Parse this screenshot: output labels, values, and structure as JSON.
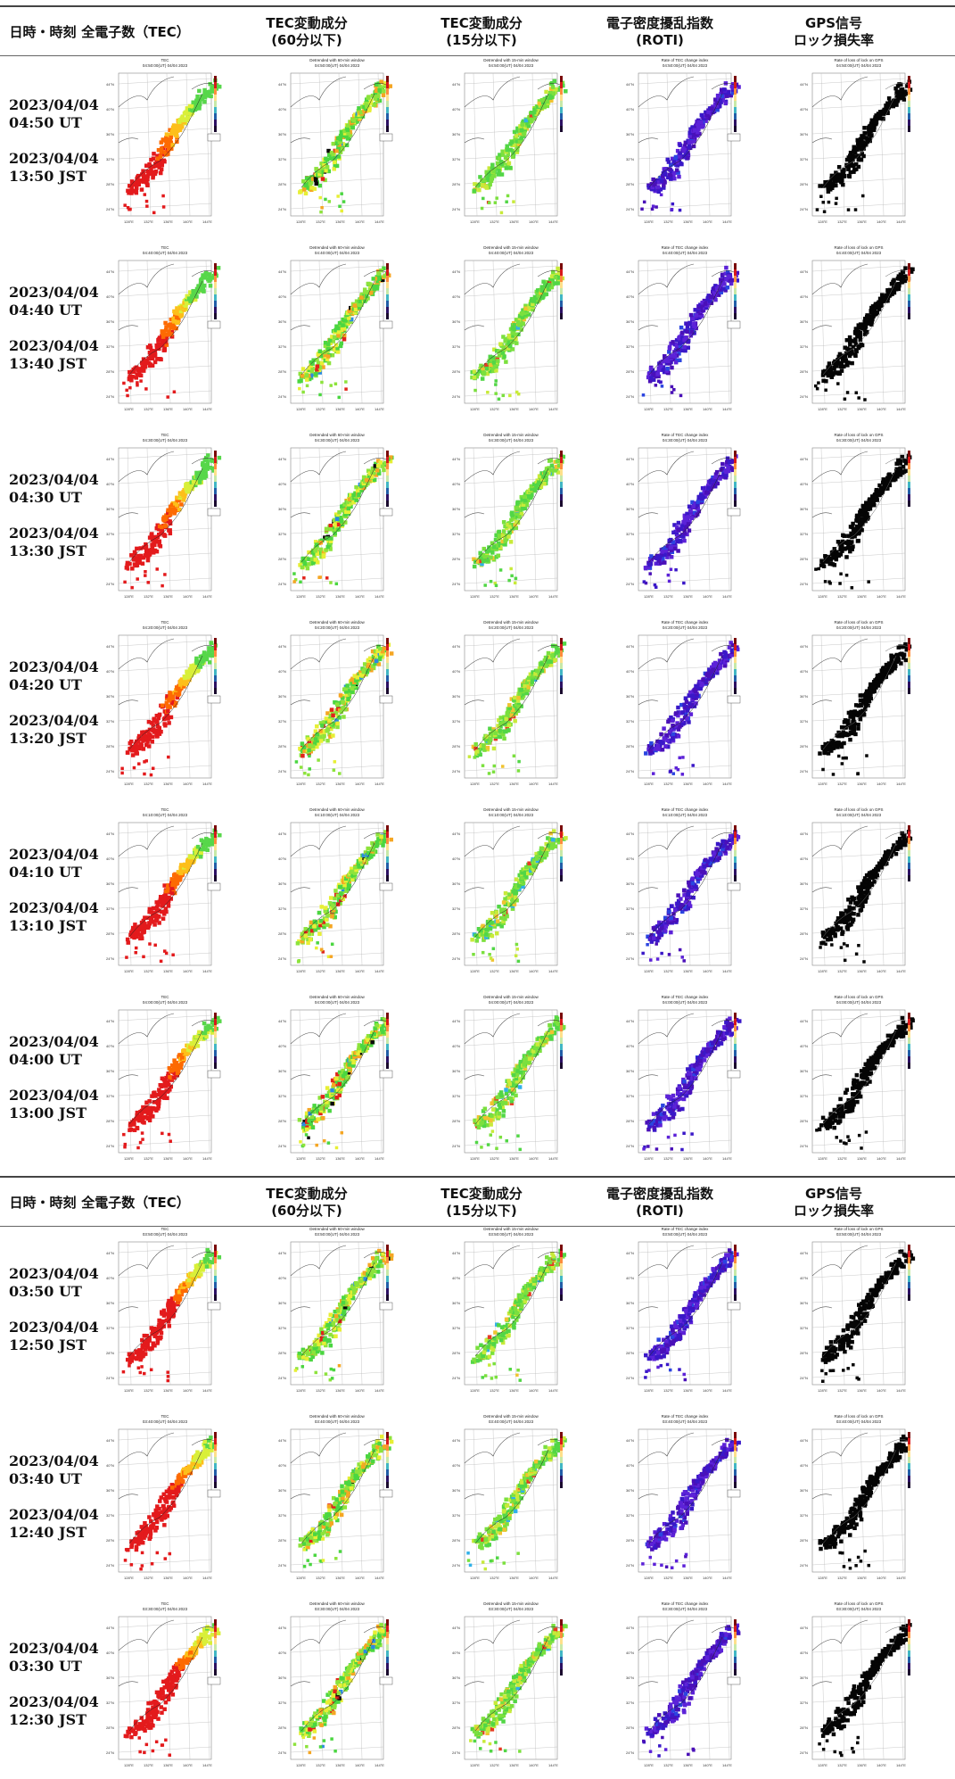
{
  "headers": [
    {
      "label": "日時・時刻"
    },
    {
      "label": "全電子数（TEC）"
    },
    {
      "label": "TEC変動成分\n(60分以下)"
    },
    {
      "label": "TEC変動成分\n(15分以下)"
    },
    {
      "label": "電子密度擾乱指数\n(ROTI)"
    },
    {
      "label": "GPS信号\nロック損失率"
    }
  ],
  "rows": [
    {
      "ut": "2023/04/04\n04:50 UT",
      "jst": "2023/04/04\n13:50 JST",
      "map_time": "04:50:00(UT) 04/04 2023"
    },
    {
      "ut": "2023/04/04\n04:40 UT",
      "jst": "2023/04/04\n13:40 JST",
      "map_time": "04:40:00(UT) 04/04 2023"
    },
    {
      "ut": "2023/04/04\n04:30 UT",
      "jst": "2023/04/04\n13:30 JST",
      "map_time": "04:30:00(UT) 04/04 2023"
    },
    {
      "ut": "2023/04/04\n04:20 UT",
      "jst": "2023/04/04\n13:20 JST",
      "map_time": "04:20:00(UT) 04/04 2023"
    },
    {
      "ut": "2023/04/04\n04:10 UT",
      "jst": "2023/04/04\n13:10 JST",
      "map_time": "04:10:00(UT) 04/04 2023"
    },
    {
      "ut": "2023/04/04\n04:00 UT",
      "jst": "2023/04/04\n13:00 JST",
      "map_time": "04:00:00(UT) 04/04 2023"
    },
    {
      "ut": "2023/04/04\n03:50 UT",
      "jst": "2023/04/04\n12:50 JST",
      "map_time": "03:50:00(UT) 04/04 2023"
    },
    {
      "ut": "2023/04/04\n03:40 UT",
      "jst": "2023/04/04\n12:40 JST",
      "map_time": "03:40:00(UT) 04/04 2023"
    },
    {
      "ut": "2023/04/04\n03:30 UT",
      "jst": "2023/04/04\n12:30 JST",
      "map_time": "03:30:00(UT) 04/04 2023"
    }
  ],
  "map_titles": [
    "TEC",
    "Detrended with 60-min window",
    "Detrended with 15-min window",
    "Rate of TEC change index",
    "Rate of loss of lock on GPS"
  ],
  "lat_labels": [
    "44°N",
    "40°N",
    "36°N",
    "32°N",
    "28°N",
    "24°N"
  ],
  "lon_labels": [
    "128°E",
    "132°E",
    "136°E",
    "140°E",
    "144°E"
  ],
  "colors": {
    "tec": [
      "#e31a1c",
      "#fd6a02",
      "#fdbf1a",
      "#d9ef39",
      "#57d74a"
    ],
    "dt60": [
      "#4bd641",
      "#8de33c",
      "#e7ef35",
      "#f5a623",
      "#e2231a",
      "#2b8be0",
      "#0a0a0a"
    ],
    "dt15": [
      "#52d646",
      "#7be03e",
      "#c8ea3a",
      "#f0c330",
      "#e53b23",
      "#30b0e8"
    ],
    "roti": [
      "#4a10b8",
      "#3a18c8",
      "#5c22d8",
      "#2b45e0"
    ],
    "lol": [
      "#050505"
    ],
    "colorbar": [
      "#7a0a0a",
      "#d7191c",
      "#fd8d3c",
      "#fee08b",
      "#c7e9a8",
      "#41b6c4",
      "#225ea8",
      "#2c1163",
      "#1a0a2e"
    ]
  },
  "map_kinds": [
    "tec",
    "dt60",
    "dt15",
    "roti",
    "lol"
  ]
}
